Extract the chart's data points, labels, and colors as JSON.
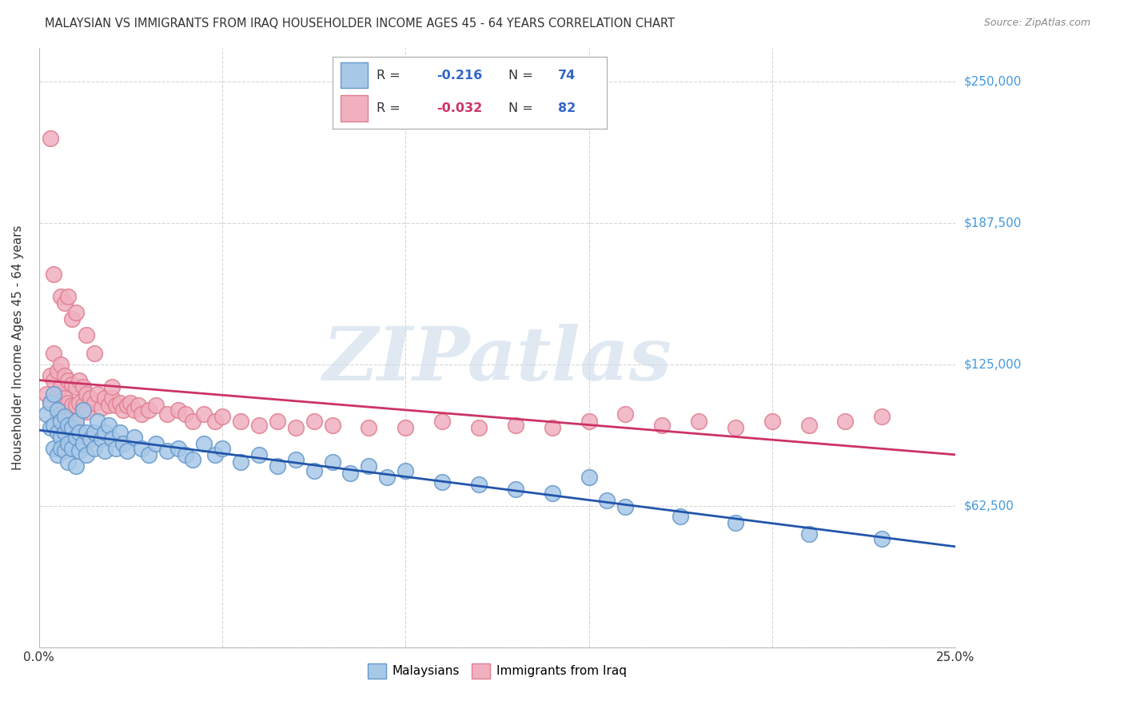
{
  "title": "MALAYSIAN VS IMMIGRANTS FROM IRAQ HOUSEHOLDER INCOME AGES 45 - 64 YEARS CORRELATION CHART",
  "source": "Source: ZipAtlas.com",
  "ylabel": "Householder Income Ages 45 - 64 years",
  "xlim": [
    0.0,
    0.25
  ],
  "ylim": [
    0,
    265000
  ],
  "yticks": [
    0,
    62500,
    125000,
    187500,
    250000
  ],
  "ytick_labels": [
    "",
    "$62,500",
    "$125,000",
    "$187,500",
    "$250,000"
  ],
  "xticks": [
    0.0,
    0.05,
    0.1,
    0.15,
    0.2,
    0.25
  ],
  "background_color": "#ffffff",
  "grid_color": "#cccccc",
  "watermark": "ZIPatlas",
  "malaysians_color": "#a8c8e8",
  "iraq_color": "#f0b0c0",
  "malaysians_edge": "#6699cc",
  "iraq_edge": "#e08090",
  "trend_blue": "#2255aa",
  "trend_pink": "#cc3366",
  "legend_r_blue": "-0.216",
  "legend_n_blue": "74",
  "legend_r_pink": "-0.032",
  "legend_n_pink": "82",
  "malaysians_x": [
    0.002,
    0.003,
    0.003,
    0.004,
    0.004,
    0.004,
    0.005,
    0.005,
    0.005,
    0.006,
    0.006,
    0.006,
    0.007,
    0.007,
    0.007,
    0.008,
    0.008,
    0.008,
    0.009,
    0.009,
    0.01,
    0.01,
    0.01,
    0.011,
    0.011,
    0.012,
    0.012,
    0.013,
    0.013,
    0.014,
    0.015,
    0.015,
    0.016,
    0.017,
    0.018,
    0.018,
    0.019,
    0.02,
    0.021,
    0.022,
    0.023,
    0.024,
    0.026,
    0.028,
    0.03,
    0.032,
    0.035,
    0.038,
    0.04,
    0.042,
    0.045,
    0.048,
    0.05,
    0.055,
    0.06,
    0.065,
    0.07,
    0.075,
    0.08,
    0.085,
    0.09,
    0.095,
    0.1,
    0.11,
    0.12,
    0.13,
    0.14,
    0.15,
    0.155,
    0.16,
    0.175,
    0.19,
    0.21,
    0.23
  ],
  "malaysians_y": [
    103000,
    97000,
    108000,
    112000,
    98000,
    88000,
    105000,
    95000,
    85000,
    100000,
    93000,
    88000,
    102000,
    95000,
    87000,
    98000,
    90000,
    82000,
    97000,
    88000,
    100000,
    93000,
    80000,
    95000,
    87000,
    105000,
    90000,
    95000,
    85000,
    92000,
    95000,
    88000,
    100000,
    92000,
    95000,
    87000,
    98000,
    92000,
    88000,
    95000,
    90000,
    87000,
    93000,
    88000,
    85000,
    90000,
    87000,
    88000,
    85000,
    83000,
    90000,
    85000,
    88000,
    82000,
    85000,
    80000,
    83000,
    78000,
    82000,
    77000,
    80000,
    75000,
    78000,
    73000,
    72000,
    70000,
    68000,
    75000,
    65000,
    62000,
    58000,
    55000,
    50000,
    48000
  ],
  "iraq_x": [
    0.002,
    0.003,
    0.003,
    0.004,
    0.004,
    0.005,
    0.005,
    0.005,
    0.006,
    0.006,
    0.006,
    0.007,
    0.007,
    0.007,
    0.008,
    0.008,
    0.009,
    0.009,
    0.01,
    0.01,
    0.01,
    0.011,
    0.011,
    0.012,
    0.012,
    0.013,
    0.013,
    0.014,
    0.015,
    0.016,
    0.017,
    0.018,
    0.019,
    0.02,
    0.021,
    0.022,
    0.023,
    0.024,
    0.025,
    0.026,
    0.027,
    0.028,
    0.03,
    0.032,
    0.035,
    0.038,
    0.04,
    0.042,
    0.045,
    0.048,
    0.05,
    0.055,
    0.06,
    0.065,
    0.07,
    0.075,
    0.08,
    0.09,
    0.1,
    0.11,
    0.12,
    0.13,
    0.14,
    0.15,
    0.16,
    0.17,
    0.18,
    0.19,
    0.2,
    0.21,
    0.22,
    0.23,
    0.004,
    0.006,
    0.007,
    0.008,
    0.009,
    0.01,
    0.013,
    0.015,
    0.003,
    0.02
  ],
  "iraq_y": [
    112000,
    120000,
    108000,
    130000,
    118000,
    122000,
    112000,
    103000,
    125000,
    115000,
    105000,
    120000,
    110000,
    102000,
    118000,
    108000,
    116000,
    107000,
    115000,
    107000,
    99000,
    118000,
    108000,
    115000,
    107000,
    112000,
    104000,
    110000,
    108000,
    112000,
    106000,
    110000,
    107000,
    110000,
    107000,
    108000,
    105000,
    107000,
    108000,
    105000,
    107000,
    103000,
    105000,
    107000,
    103000,
    105000,
    103000,
    100000,
    103000,
    100000,
    102000,
    100000,
    98000,
    100000,
    97000,
    100000,
    98000,
    97000,
    97000,
    100000,
    97000,
    98000,
    97000,
    100000,
    103000,
    98000,
    100000,
    97000,
    100000,
    98000,
    100000,
    102000,
    165000,
    155000,
    152000,
    155000,
    145000,
    148000,
    138000,
    130000,
    225000,
    115000
  ]
}
